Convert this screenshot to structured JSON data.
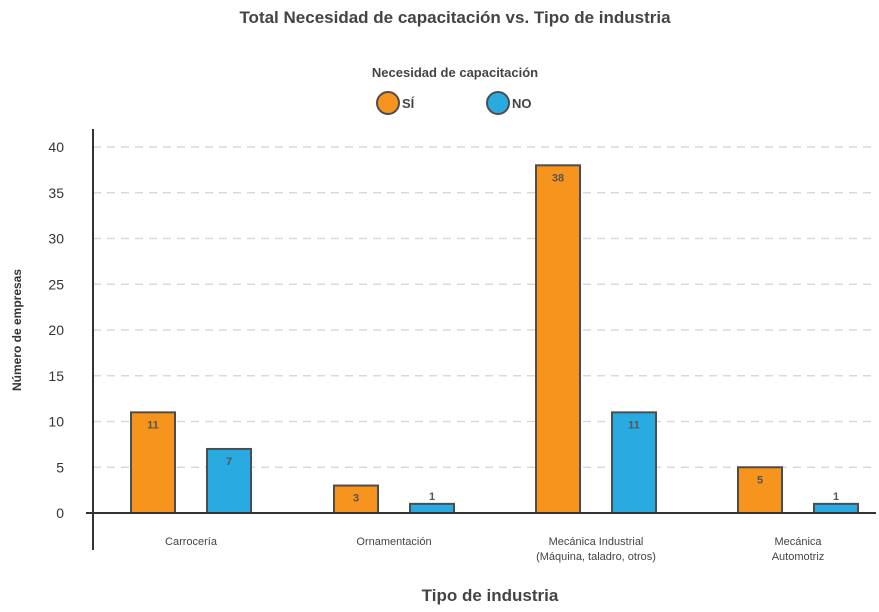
{
  "chart_data": {
    "type": "bar",
    "title": "Total Necesidad de capacitación vs. Tipo de industria",
    "legend_title": "Necesidad de capacitación",
    "legend_position": "top-center",
    "xlabel": "Tipo de industria",
    "ylabel": "Número de empresas",
    "ylim": [
      0,
      40
    ],
    "yticks": [
      0,
      5,
      10,
      15,
      20,
      25,
      30,
      35,
      40
    ],
    "grid": true,
    "categories": [
      [
        "Carrocería"
      ],
      [
        "Ornamentación"
      ],
      [
        "Mecánica Industrial",
        "(Máquina, taladro, otros)"
      ],
      [
        "Mecánica",
        "Automotriz"
      ]
    ],
    "series": [
      {
        "name": "SÍ",
        "color": "#F7941D",
        "values": [
          11,
          3,
          38,
          5
        ],
        "labels": [
          "11",
          "3",
          "38",
          "5"
        ]
      },
      {
        "name": "NO",
        "color": "#29ABE2",
        "values": [
          7,
          1,
          11,
          1
        ],
        "labels": [
          "7",
          "1",
          "11",
          "1"
        ]
      }
    ],
    "colors": {
      "bar_stroke": "#4D4D4D",
      "grid": "#D9D9D9",
      "axis": "#333333"
    }
  }
}
